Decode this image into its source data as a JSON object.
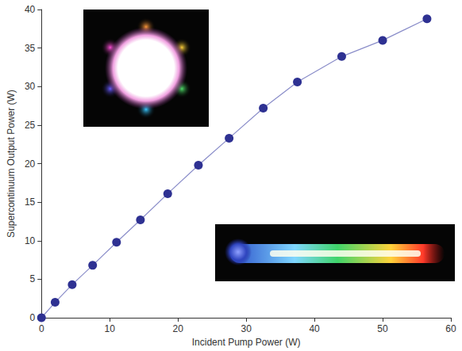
{
  "chart_data": {
    "type": "line",
    "x_label": "Incident Pump Power (W)",
    "y_label": "Supercontinuum Output Power (W)",
    "series": [
      {
        "name": "Supercontinuum",
        "color": "#2e3192",
        "marker": "circle",
        "line_style": "solid",
        "x": [
          0,
          2,
          4.5,
          7.5,
          11,
          14.5,
          18.5,
          23,
          27.5,
          32.5,
          37.5,
          44,
          50,
          56.5
        ],
        "values": [
          0,
          2,
          4.3,
          6.8,
          9.8,
          12.7,
          16.1,
          19.8,
          23.3,
          27.2,
          30.6,
          33.9,
          36,
          38.8
        ]
      }
    ],
    "xlim": [
      0,
      60
    ],
    "xticks": [
      0,
      10,
      20,
      30,
      40,
      50,
      60
    ],
    "ylim": [
      0,
      40
    ],
    "yticks": [
      0,
      5,
      10,
      15,
      20,
      25,
      30,
      35,
      40
    ],
    "grid": false
  }
}
